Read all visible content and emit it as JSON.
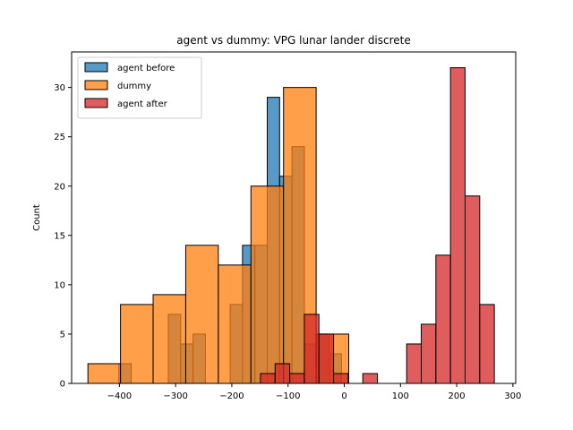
{
  "chart_data": {
    "type": "histogram",
    "title": "agent vs dummy: VPG lunar lander discrete",
    "xlabel": "",
    "ylabel": "Count",
    "xlim": [
      -485,
      305
    ],
    "ylim": [
      0,
      33.6
    ],
    "xticks": [
      -400,
      -300,
      -200,
      -100,
      0,
      100,
      200,
      300
    ],
    "yticks": [
      0,
      5,
      10,
      15,
      20,
      25,
      30
    ],
    "legend_position": "top-left",
    "series": [
      {
        "name": "agent before",
        "color": "#1f77b4",
        "bins": [
          {
            "x0": -401,
            "x1": -379,
            "count": 2
          },
          {
            "x0": -379,
            "x1": -357,
            "count": 0
          },
          {
            "x0": -357,
            "x1": -335,
            "count": 0
          },
          {
            "x0": -335,
            "x1": -313,
            "count": 0
          },
          {
            "x0": -313,
            "x1": -291,
            "count": 7
          },
          {
            "x0": -291,
            "x1": -269,
            "count": 4
          },
          {
            "x0": -269,
            "x1": -247,
            "count": 5
          },
          {
            "x0": -247,
            "x1": -225,
            "count": 0
          },
          {
            "x0": -225,
            "x1": -203,
            "count": 0
          },
          {
            "x0": -203,
            "x1": -181,
            "count": 8
          },
          {
            "x0": -181,
            "x1": -159,
            "count": 14
          },
          {
            "x0": -159,
            "x1": -137,
            "count": 14
          },
          {
            "x0": -137,
            "x1": -115,
            "count": 29
          },
          {
            "x0": -115,
            "x1": -93,
            "count": 21
          },
          {
            "x0": -93,
            "x1": -71,
            "count": 24
          },
          {
            "x0": -71,
            "x1": -49,
            "count": 4
          },
          {
            "x0": -49,
            "x1": -27,
            "count": 5
          },
          {
            "x0": -27,
            "x1": -5,
            "count": 3
          },
          {
            "x0": -5,
            "x1": 17,
            "count": 0
          }
        ]
      },
      {
        "name": "dummy",
        "color": "#ff7f0e",
        "bins": [
          {
            "x0": -456,
            "x1": -398,
            "count": 2
          },
          {
            "x0": -398,
            "x1": -340,
            "count": 8
          },
          {
            "x0": -340,
            "x1": -282,
            "count": 9
          },
          {
            "x0": -282,
            "x1": -224,
            "count": 14
          },
          {
            "x0": -224,
            "x1": -166,
            "count": 12
          },
          {
            "x0": -166,
            "x1": -108,
            "count": 20
          },
          {
            "x0": -108,
            "x1": -50,
            "count": 30
          },
          {
            "x0": -50,
            "x1": 8,
            "count": 5
          }
        ]
      },
      {
        "name": "agent after",
        "color": "#d62728",
        "bins": [
          {
            "x0": -149,
            "x1": -123,
            "count": 1
          },
          {
            "x0": -123,
            "x1": -97,
            "count": 2
          },
          {
            "x0": -97,
            "x1": -71,
            "count": 1
          },
          {
            "x0": -71,
            "x1": -45,
            "count": 7
          },
          {
            "x0": -45,
            "x1": -19,
            "count": 5
          },
          {
            "x0": -19,
            "x1": 7,
            "count": 1
          },
          {
            "x0": 7,
            "x1": 33,
            "count": 0
          },
          {
            "x0": 33,
            "x1": 59,
            "count": 1
          },
          {
            "x0": 59,
            "x1": 85,
            "count": 0
          },
          {
            "x0": 85,
            "x1": 111,
            "count": 0
          },
          {
            "x0": 111,
            "x1": 137,
            "count": 4
          },
          {
            "x0": 137,
            "x1": 163,
            "count": 6
          },
          {
            "x0": 163,
            "x1": 189,
            "count": 13
          },
          {
            "x0": 189,
            "x1": 215,
            "count": 32
          },
          {
            "x0": 215,
            "x1": 241,
            "count": 19
          },
          {
            "x0": 241,
            "x1": 267,
            "count": 8
          }
        ]
      }
    ]
  }
}
